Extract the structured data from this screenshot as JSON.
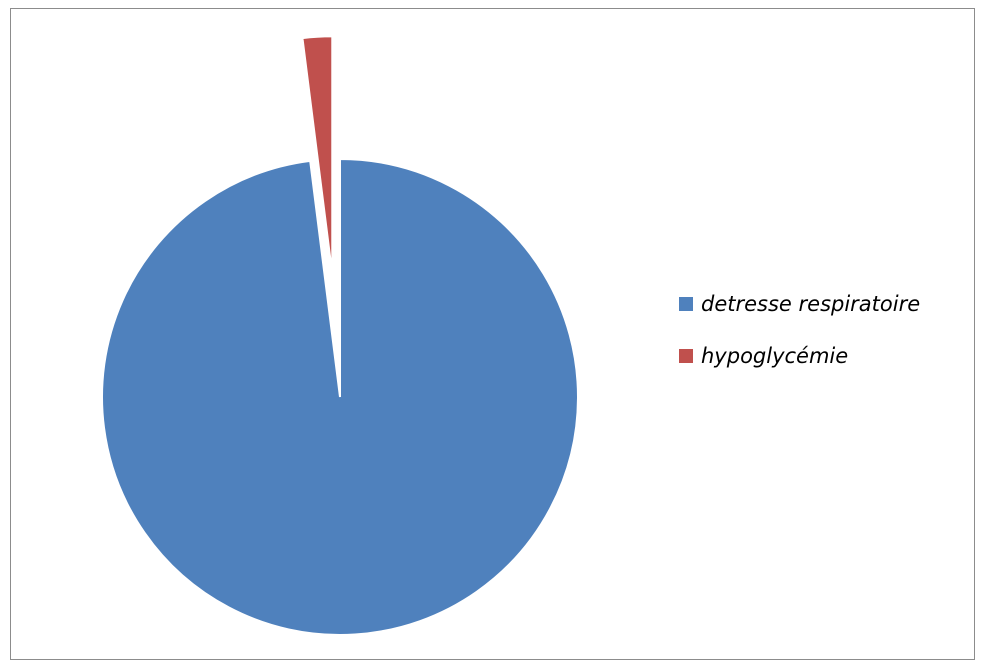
{
  "chart_data": {
    "type": "pie",
    "title": "",
    "categories": [
      "detresse respiratoire",
      "hypoglycémie"
    ],
    "values": [
      98,
      2
    ],
    "colors": [
      "#4f81bd",
      "#c0504d"
    ],
    "exploded": [
      false,
      true
    ],
    "start_angle_deg": 0,
    "legend": {
      "position": "right",
      "entries": [
        "detresse respiratoire",
        "hypoglycémie"
      ]
    }
  }
}
